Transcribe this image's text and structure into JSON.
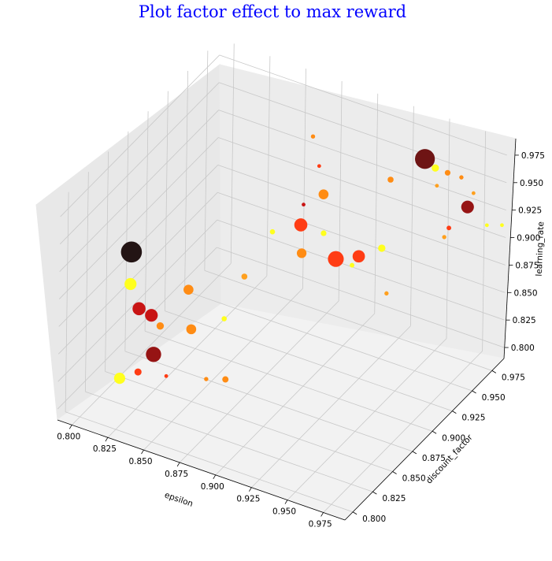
{
  "chart_data": {
    "type": "scatter",
    "projection": "3d",
    "title": "Plot factor effect to max reward",
    "title_color": "#0000ff",
    "xlabel": "epsilon",
    "ylabel": "discount_factor",
    "zlabel": "learning_rate",
    "xlim": [
      0.79,
      0.99
    ],
    "ylim": [
      0.79,
      0.99
    ],
    "zlim": [
      0.79,
      0.99
    ],
    "grid": true,
    "colormap": "hot_r",
    "x_ticks": [
      "0.800",
      "0.825",
      "0.850",
      "0.875",
      "0.900",
      "0.925",
      "0.950",
      "0.975"
    ],
    "y_ticks": [
      "0.800",
      "0.825",
      "0.850",
      "0.875",
      "0.900",
      "0.925",
      "0.950",
      "0.975"
    ],
    "z_ticks": [
      "0.800",
      "0.825",
      "0.850",
      "0.875",
      "0.900",
      "0.925",
      "0.950",
      "0.975"
    ],
    "points": [
      {
        "x": 0.82,
        "y": 0.826,
        "z": 0.93,
        "reward": 245,
        "color": "#231414"
      },
      {
        "x": 0.811,
        "y": 0.842,
        "z": 0.885,
        "reward": 80,
        "color": "#ffff1e"
      },
      {
        "x": 0.828,
        "y": 0.822,
        "z": 0.885,
        "reward": 95,
        "color": "#c81414"
      },
      {
        "x": 0.835,
        "y": 0.825,
        "z": 0.88,
        "reward": 90,
        "color": "#c81414"
      },
      {
        "x": 0.855,
        "y": 0.835,
        "z": 0.905,
        "reward": 55,
        "color": "#ff8c14"
      },
      {
        "x": 0.845,
        "y": 0.818,
        "z": 0.88,
        "reward": 30,
        "color": "#ff8c14"
      },
      {
        "x": 0.86,
        "y": 0.83,
        "z": 0.875,
        "reward": 55,
        "color": "#ff8c14"
      },
      {
        "x": 0.812,
        "y": 0.828,
        "z": 0.81,
        "reward": 70,
        "color": "#ffff1e"
      },
      {
        "x": 0.845,
        "y": 0.81,
        "z": 0.86,
        "reward": 130,
        "color": "#961414"
      },
      {
        "x": 0.81,
        "y": 0.855,
        "z": 0.795,
        "reward": 28,
        "color": "#ff3c14"
      },
      {
        "x": 0.88,
        "y": 0.86,
        "z": 0.91,
        "reward": 20,
        "color": "#ffa01e"
      },
      {
        "x": 0.88,
        "y": 0.835,
        "z": 0.89,
        "reward": 15,
        "color": "#ffff1e"
      },
      {
        "x": 0.895,
        "y": 0.81,
        "z": 0.86,
        "reward": 22,
        "color": "#ff8c14"
      },
      {
        "x": 0.86,
        "y": 0.85,
        "z": 0.815,
        "reward": 10,
        "color": "#ff8c14"
      },
      {
        "x": 0.835,
        "y": 0.845,
        "z": 0.81,
        "reward": 8,
        "color": "#ff3c14"
      },
      {
        "x": 0.905,
        "y": 0.885,
        "z": 0.95,
        "reward": 95,
        "color": "#ff3c14"
      },
      {
        "x": 0.935,
        "y": 0.875,
        "z": 0.94,
        "reward": 140,
        "color": "#ff3c14"
      },
      {
        "x": 0.94,
        "y": 0.895,
        "z": 0.93,
        "reward": 85,
        "color": "#ff3c14"
      },
      {
        "x": 0.915,
        "y": 0.895,
        "z": 0.975,
        "reward": 55,
        "color": "#ff8c14"
      },
      {
        "x": 0.88,
        "y": 0.895,
        "z": 0.925,
        "reward": 15,
        "color": "#ffff1e"
      },
      {
        "x": 0.895,
        "y": 0.905,
        "z": 0.905,
        "reward": 52,
        "color": "#ff8c14"
      },
      {
        "x": 0.88,
        "y": 0.945,
        "z": 0.975,
        "reward": 10,
        "color": "#ff8c14"
      },
      {
        "x": 0.89,
        "y": 0.935,
        "z": 0.96,
        "reward": 8,
        "color": "#ff3c14"
      },
      {
        "x": 0.885,
        "y": 0.925,
        "z": 0.93,
        "reward": 8,
        "color": "#c81414"
      },
      {
        "x": 0.93,
        "y": 0.905,
        "z": 0.91,
        "reward": 12,
        "color": "#ffff1e"
      },
      {
        "x": 0.945,
        "y": 0.915,
        "z": 0.925,
        "reward": 30,
        "color": "#ffff1e"
      },
      {
        "x": 0.965,
        "y": 0.885,
        "z": 0.915,
        "reward": 10,
        "color": "#ffa01e"
      },
      {
        "x": 0.91,
        "y": 0.905,
        "z": 0.93,
        "reward": 18,
        "color": "#ffff1e"
      },
      {
        "x": 0.945,
        "y": 0.925,
        "z": 0.98,
        "reward": 20,
        "color": "#ff8c14"
      },
      {
        "x": 0.955,
        "y": 0.95,
        "z": 0.985,
        "reward": 220,
        "color": "#6e1414"
      },
      {
        "x": 0.965,
        "y": 0.945,
        "z": 0.985,
        "reward": 30,
        "color": "#ffff1e"
      },
      {
        "x": 0.975,
        "y": 0.96,
        "z": 0.97,
        "reward": 10,
        "color": "#ff8c14"
      },
      {
        "x": 0.985,
        "y": 0.95,
        "z": 0.955,
        "reward": 90,
        "color": "#961414"
      },
      {
        "x": 0.975,
        "y": 0.945,
        "z": 0.935,
        "reward": 12,
        "color": "#ff3c14"
      },
      {
        "x": 0.98,
        "y": 0.93,
        "z": 0.94,
        "reward": 10,
        "color": "#ffa01e"
      },
      {
        "x": 0.95,
        "y": 0.975,
        "z": 0.94,
        "reward": 8,
        "color": "#ffa01e"
      },
      {
        "x": 0.97,
        "y": 0.985,
        "z": 0.935,
        "reward": 8,
        "color": "#ffa01e"
      },
      {
        "x": 0.985,
        "y": 0.975,
        "z": 0.92,
        "reward": 8,
        "color": "#ffff1e"
      },
      {
        "x": 0.99,
        "y": 0.985,
        "z": 0.915,
        "reward": 8,
        "color": "#ffff1e"
      },
      {
        "x": 0.96,
        "y": 0.97,
        "z": 0.96,
        "reward": 18,
        "color": "#ff8c14"
      }
    ]
  }
}
